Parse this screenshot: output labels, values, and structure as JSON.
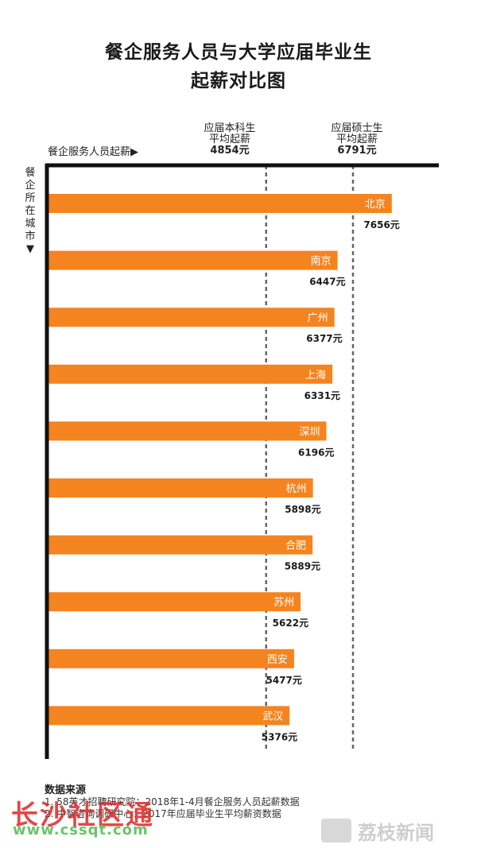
{
  "title_lines": [
    "餐企服务人员与大学应届毕业生",
    "起薪对比图"
  ],
  "x_axis_label": "餐企服务人员起薪▶",
  "y_axis_label": "餐企所在城市▼",
  "reference_lines": [
    {
      "label_line1": "应届本科生",
      "label_line2": "平均起薪",
      "value": 4854,
      "value_label": "4854元"
    },
    {
      "label_line1": "应届硕士生",
      "label_line2": "平均起薪",
      "value": 6791,
      "value_label": "6791元"
    }
  ],
  "colors": {
    "bar": "#f4841f",
    "axis": "#111111",
    "refline": "#666666"
  },
  "chart_data": {
    "type": "bar",
    "orientation": "horizontal",
    "categories": [
      "北京",
      "南京",
      "广州",
      "上海",
      "深圳",
      "杭州",
      "合肥",
      "苏州",
      "西安",
      "武汉"
    ],
    "values": [
      7656,
      6447,
      6377,
      6331,
      6196,
      5898,
      5889,
      5622,
      5477,
      5376
    ],
    "value_labels": [
      "7656元",
      "6447元",
      "6377元",
      "6331元",
      "6196元",
      "5898元",
      "5889元",
      "5622元",
      "5477元",
      "5376元"
    ],
    "title": "餐企服务人员与大学应届毕业生起薪对比图",
    "xlabel": "餐企服务人员起薪",
    "ylabel": "餐企所在城市",
    "xlim": [
      0,
      8300
    ]
  },
  "sources": {
    "title": "数据来源",
    "lines": [
      "1. 58英才招聘研究院：2018年1-4月餐企服务人员起薪数据",
      "2. 中智咨询调研中心：2017年应届毕业生平均薪资数据"
    ]
  },
  "watermarks": {
    "left": "长沙社区通",
    "left_url": "www.cssqt.com",
    "right": "荔枝新闻"
  }
}
